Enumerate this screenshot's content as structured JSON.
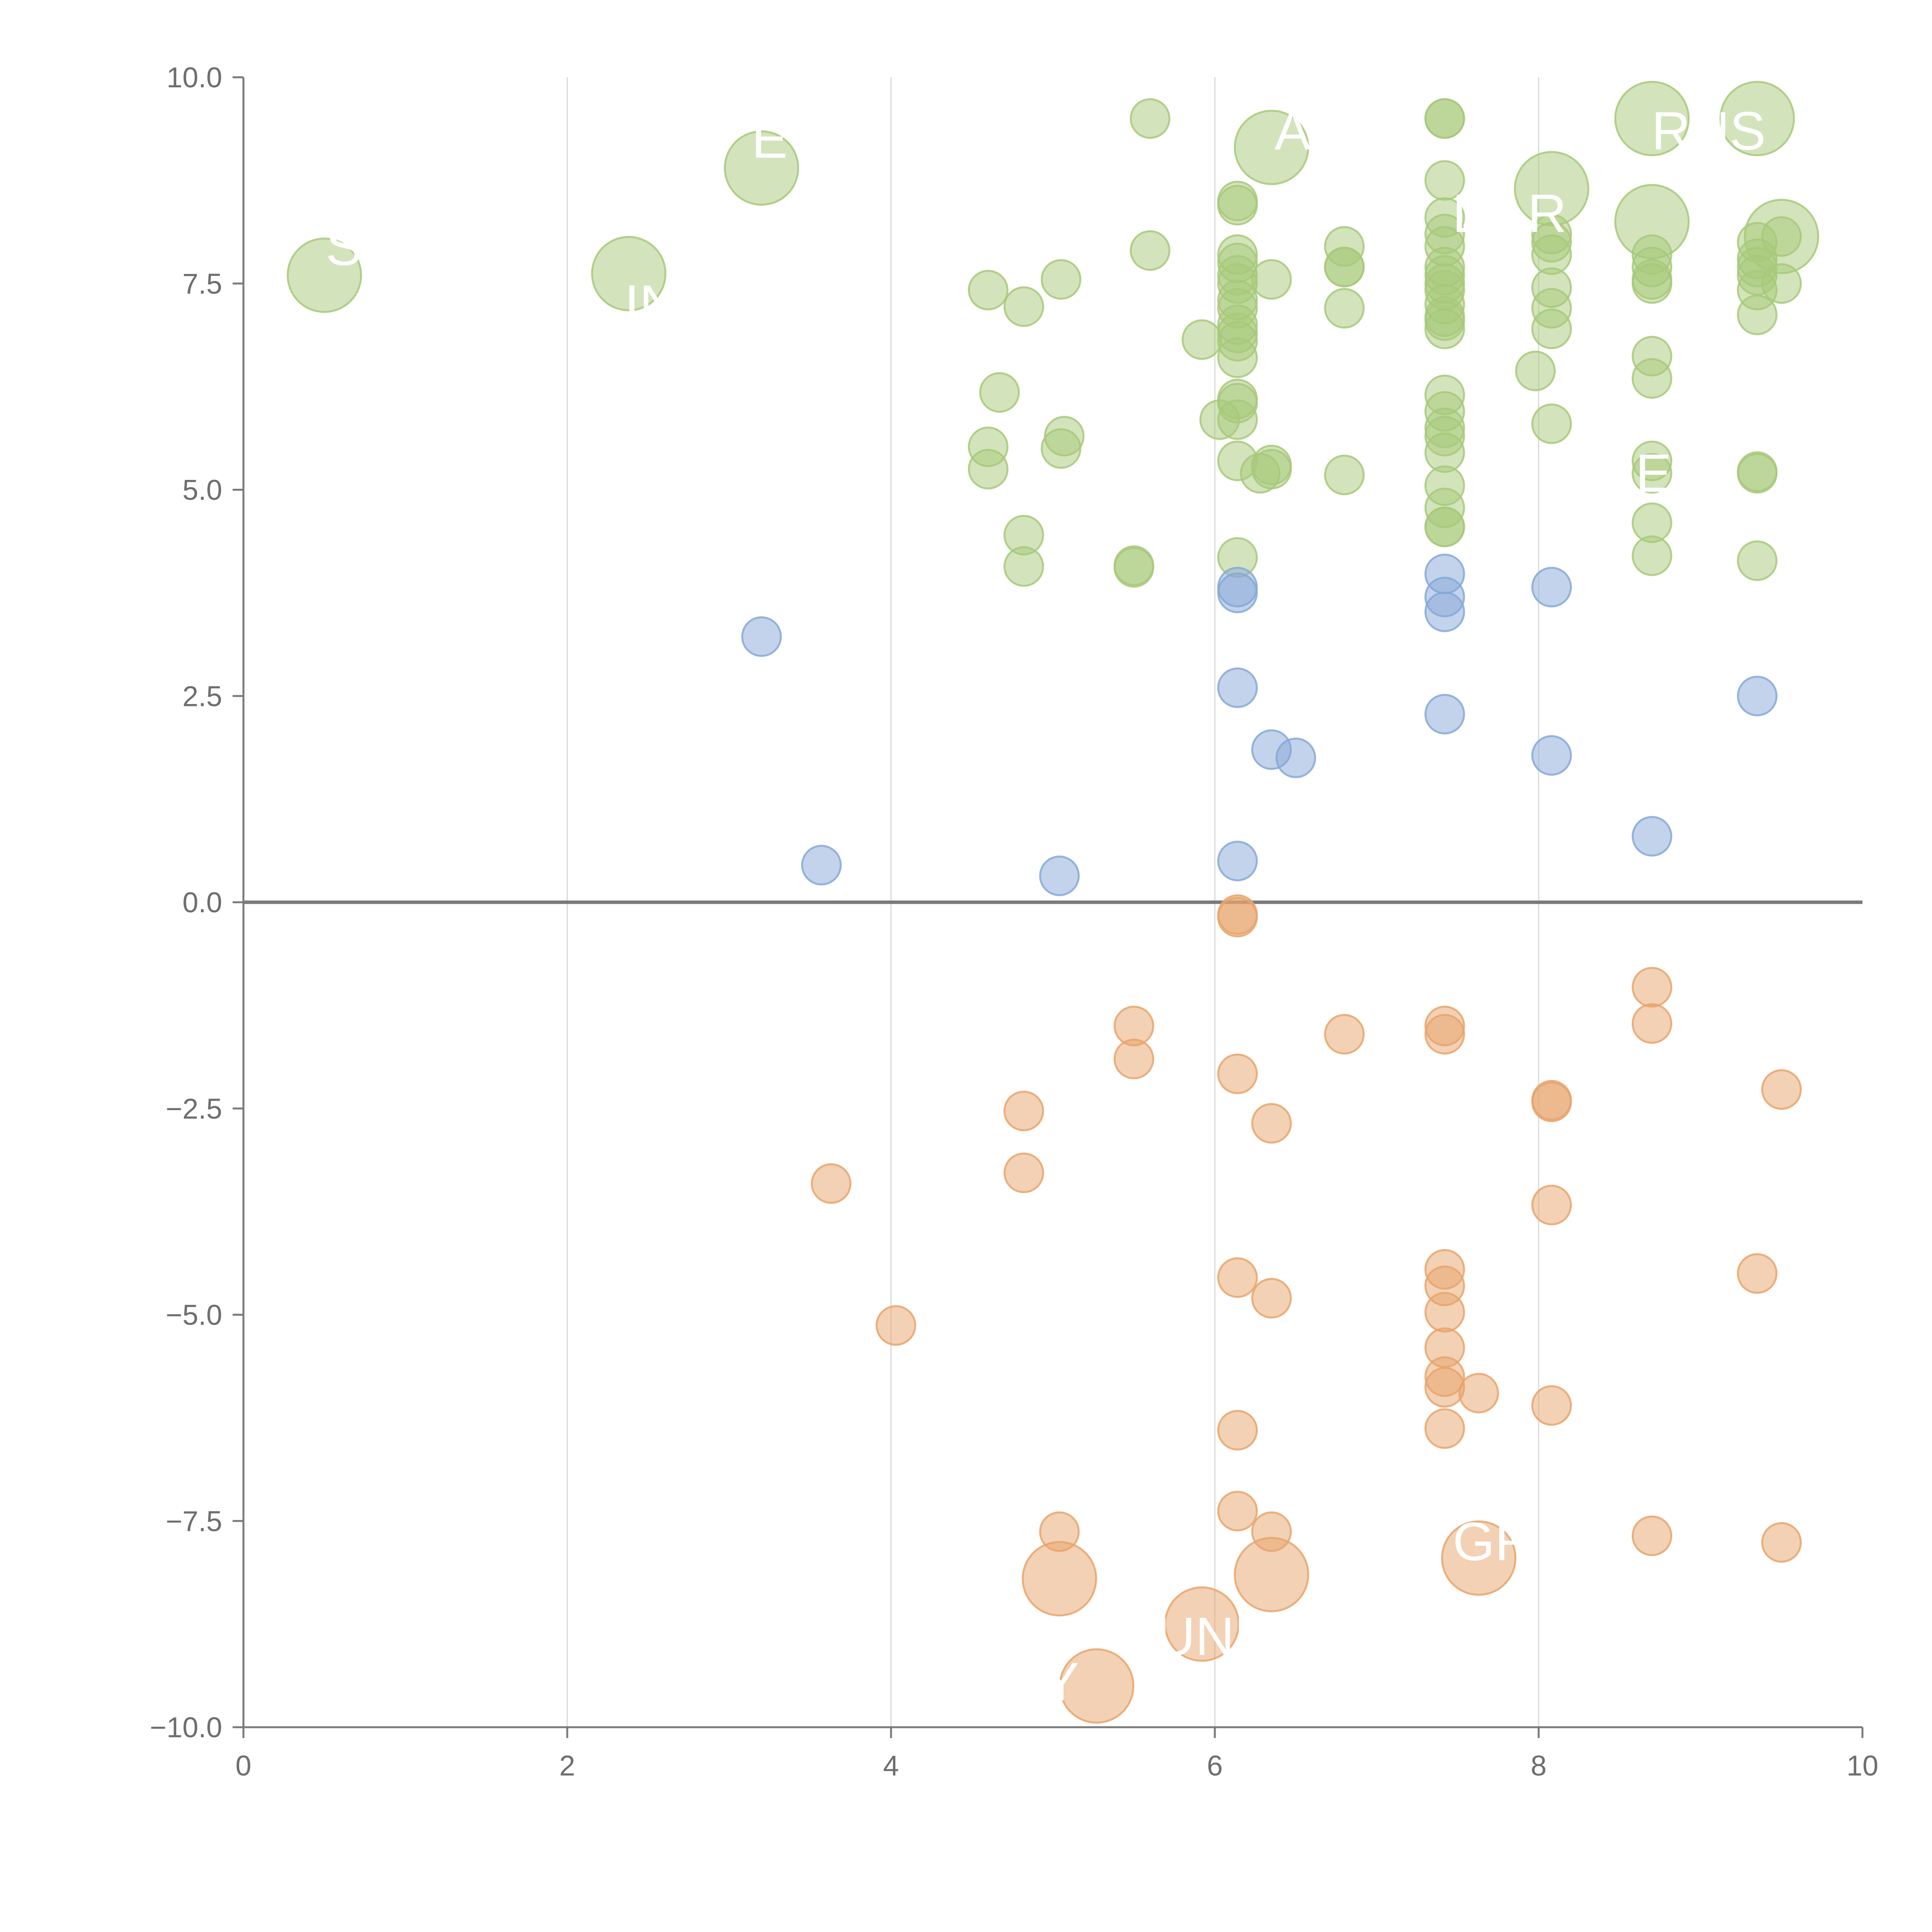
{
  "chart_data": {
    "type": "scatter",
    "title": "",
    "xlabel": "",
    "ylabel": "",
    "xlim": [
      0,
      10
    ],
    "ylim": [
      -10,
      10
    ],
    "x_ticks": [
      "0",
      "2",
      "4",
      "6",
      "8",
      "10"
    ],
    "y_ticks": [
      "10.0",
      "7.5",
      "5.0",
      "2.5",
      "0.0",
      "−2.5",
      "−5.0",
      "−7.5",
      "−10.0"
    ],
    "grid": "vertical",
    "zero_line": true,
    "colors": {
      "positive": "#a7c97a",
      "neutral": "#86a8d8",
      "negative": "#e8a46b",
      "axis": "#7a7a7a",
      "grid": "#d8d8d8"
    },
    "series": [
      {
        "name": "positive",
        "points": [
          [
            0.5,
            7.6,
            2
          ],
          [
            2.38,
            7.62,
            2
          ],
          [
            3.2,
            8.9,
            2
          ],
          [
            5.6,
            9.5,
            1
          ],
          [
            6.35,
            9.15,
            2
          ],
          [
            7.42,
            9.5,
            1
          ],
          [
            7.42,
            9.5,
            1
          ],
          [
            8.7,
            9.5,
            2
          ],
          [
            9.35,
            9.5,
            2
          ],
          [
            7.42,
            8.75,
            1
          ],
          [
            8.08,
            8.65,
            2
          ],
          [
            6.14,
            8.5,
            1
          ],
          [
            6.14,
            8.45,
            1
          ],
          [
            8.7,
            8.25,
            2
          ],
          [
            9.5,
            8.07,
            2
          ],
          [
            9.35,
            8.0,
            1
          ],
          [
            9.5,
            8.07,
            1
          ],
          [
            6.8,
            7.95,
            1
          ],
          [
            5.6,
            7.9,
            1
          ],
          [
            7.42,
            8.3,
            1
          ],
          [
            7.42,
            8.1,
            1
          ],
          [
            7.42,
            7.95,
            1
          ],
          [
            8.08,
            8.1,
            1
          ],
          [
            8.08,
            8.0,
            1
          ],
          [
            8.08,
            7.85,
            1
          ],
          [
            8.7,
            7.85,
            1
          ],
          [
            8.7,
            7.7,
            1
          ],
          [
            9.35,
            7.8,
            1
          ],
          [
            9.35,
            7.7,
            1
          ],
          [
            9.35,
            7.6,
            1
          ],
          [
            6.14,
            7.85,
            1
          ],
          [
            6.14,
            7.75,
            1
          ],
          [
            6.14,
            7.6,
            1
          ],
          [
            6.14,
            7.5,
            1
          ],
          [
            6.35,
            7.55,
            1
          ],
          [
            6.8,
            7.7,
            1
          ],
          [
            6.8,
            7.7,
            1
          ],
          [
            5.05,
            7.55,
            1
          ],
          [
            4.6,
            7.42,
            1
          ],
          [
            4.82,
            7.22,
            1
          ],
          [
            7.42,
            7.7,
            1
          ],
          [
            7.42,
            7.6,
            1
          ],
          [
            7.42,
            7.5,
            1
          ],
          [
            7.42,
            7.42,
            1
          ],
          [
            8.08,
            7.45,
            1
          ],
          [
            8.7,
            7.55,
            1
          ],
          [
            8.7,
            7.5,
            1
          ],
          [
            9.35,
            7.42,
            1
          ],
          [
            9.5,
            7.5,
            1
          ],
          [
            6.14,
            7.3,
            1
          ],
          [
            6.14,
            7.2,
            1
          ],
          [
            6.14,
            7.0,
            1
          ],
          [
            6.14,
            6.9,
            1
          ],
          [
            6.14,
            6.8,
            1
          ],
          [
            6.8,
            7.2,
            1
          ],
          [
            7.42,
            7.25,
            1
          ],
          [
            7.42,
            7.1,
            1
          ],
          [
            7.42,
            7.05,
            1
          ],
          [
            7.42,
            6.95,
            1
          ],
          [
            8.08,
            7.2,
            1
          ],
          [
            8.08,
            6.95,
            1
          ],
          [
            9.35,
            7.12,
            1
          ],
          [
            5.92,
            6.82,
            1
          ],
          [
            6.14,
            6.6,
            1
          ],
          [
            8.7,
            6.62,
            1
          ],
          [
            7.98,
            6.44,
            1
          ],
          [
            8.7,
            6.35,
            1
          ],
          [
            4.67,
            6.18,
            1
          ],
          [
            7.42,
            6.15,
            1
          ],
          [
            6.14,
            6.1,
            1
          ],
          [
            6.14,
            6.05,
            1
          ],
          [
            7.42,
            5.95,
            1
          ],
          [
            6.03,
            5.85,
            1
          ],
          [
            6.14,
            5.85,
            1
          ],
          [
            8.08,
            5.8,
            1
          ],
          [
            7.42,
            5.75,
            1
          ],
          [
            7.42,
            5.65,
            1
          ],
          [
            5.07,
            5.65,
            1
          ],
          [
            4.6,
            5.52,
            1
          ],
          [
            5.05,
            5.5,
            1
          ],
          [
            7.42,
            5.45,
            1
          ],
          [
            6.14,
            5.35,
            1
          ],
          [
            8.7,
            5.35,
            1
          ],
          [
            6.35,
            5.3,
            1
          ],
          [
            6.35,
            5.25,
            1
          ],
          [
            6.28,
            5.2,
            1
          ],
          [
            6.8,
            5.18,
            1
          ],
          [
            4.6,
            5.25,
            1
          ],
          [
            9.35,
            5.22,
            1
          ],
          [
            9.35,
            5.2,
            1
          ],
          [
            8.7,
            5.2,
            1
          ],
          [
            7.42,
            5.05,
            1
          ],
          [
            7.42,
            4.78,
            1
          ],
          [
            8.7,
            4.6,
            1
          ],
          [
            7.42,
            4.55,
            1
          ],
          [
            7.42,
            4.55,
            1
          ],
          [
            4.82,
            4.45,
            1
          ],
          [
            6.14,
            4.18,
            1
          ],
          [
            8.7,
            4.2,
            1
          ],
          [
            9.35,
            4.14,
            1
          ],
          [
            4.82,
            4.07,
            1
          ],
          [
            5.5,
            4.08,
            1
          ],
          [
            5.5,
            4.06,
            1
          ]
        ]
      },
      {
        "name": "neutral",
        "points": [
          [
            3.2,
            3.22,
            1
          ],
          [
            6.14,
            3.82,
            1
          ],
          [
            6.14,
            3.75,
            1
          ],
          [
            7.42,
            3.98,
            1
          ],
          [
            7.42,
            3.7,
            1
          ],
          [
            7.42,
            3.52,
            1
          ],
          [
            8.08,
            3.82,
            1
          ],
          [
            6.14,
            2.6,
            1
          ],
          [
            9.35,
            2.5,
            1
          ],
          [
            7.42,
            2.28,
            1
          ],
          [
            6.35,
            1.85,
            1
          ],
          [
            6.5,
            1.75,
            1
          ],
          [
            8.08,
            1.78,
            1
          ],
          [
            8.7,
            0.8,
            1
          ],
          [
            3.57,
            0.45,
            1
          ],
          [
            6.14,
            0.5,
            1
          ],
          [
            5.04,
            0.32,
            1
          ]
        ]
      },
      {
        "name": "negative",
        "points": [
          [
            6.14,
            -0.15,
            1
          ],
          [
            6.14,
            -0.18,
            1
          ],
          [
            8.7,
            -1.03,
            1
          ],
          [
            8.7,
            -1.47,
            1
          ],
          [
            7.42,
            -1.5,
            1
          ],
          [
            7.42,
            -1.6,
            1
          ],
          [
            6.8,
            -1.6,
            1
          ],
          [
            5.5,
            -1.5,
            1
          ],
          [
            5.5,
            -1.9,
            1
          ],
          [
            6.14,
            -2.08,
            1
          ],
          [
            9.5,
            -2.27,
            1
          ],
          [
            8.08,
            -2.4,
            1
          ],
          [
            8.08,
            -2.42,
            1
          ],
          [
            4.82,
            -2.53,
            1
          ],
          [
            6.35,
            -2.68,
            1
          ],
          [
            4.82,
            -3.28,
            1
          ],
          [
            3.63,
            -3.41,
            1
          ],
          [
            8.08,
            -3.67,
            1
          ],
          [
            7.42,
            -4.45,
            1
          ],
          [
            7.42,
            -4.65,
            1
          ],
          [
            9.35,
            -4.5,
            1
          ],
          [
            6.14,
            -4.55,
            1
          ],
          [
            6.35,
            -4.8,
            1
          ],
          [
            7.42,
            -4.97,
            1
          ],
          [
            4.03,
            -5.13,
            1
          ],
          [
            7.42,
            -5.4,
            1
          ],
          [
            7.42,
            -5.75,
            1
          ],
          [
            7.42,
            -5.88,
            1
          ],
          [
            7.63,
            -5.95,
            1
          ],
          [
            8.08,
            -6.1,
            1
          ],
          [
            6.14,
            -6.4,
            1
          ],
          [
            7.42,
            -6.38,
            1
          ],
          [
            6.14,
            -7.38,
            1
          ],
          [
            5.04,
            -7.63,
            1
          ],
          [
            6.35,
            -7.63,
            1
          ],
          [
            8.7,
            -7.68,
            1
          ],
          [
            9.5,
            -7.76,
            1
          ],
          [
            7.63,
            -7.95,
            2
          ],
          [
            5.04,
            -8.2,
            2
          ],
          [
            6.35,
            -8.15,
            2
          ],
          [
            5.92,
            -8.75,
            2
          ],
          [
            5.27,
            -9.5,
            2
          ]
        ]
      }
    ],
    "annotations": [
      {
        "text": "S",
        "x": 0.62,
        "y": 7.95
      },
      {
        "text": "IN",
        "x": 2.52,
        "y": 7.25
      },
      {
        "text": "E",
        "x": 3.25,
        "y": 9.25
      },
      {
        "text": "A",
        "x": 6.48,
        "y": 9.35
      },
      {
        "text": "DAR",
        "x": 7.82,
        "y": 8.35
      },
      {
        "text": "RNS",
        "x": 9.05,
        "y": 9.35
      },
      {
        "text": "E",
        "x": 8.71,
        "y": 5.2
      },
      {
        "text": "GR",
        "x": 7.72,
        "y": -7.75
      },
      {
        "text": "UND",
        "x": 6.0,
        "y": -8.9
      },
      {
        "text": "Y",
        "x": 5.05,
        "y": -9.45
      }
    ]
  }
}
